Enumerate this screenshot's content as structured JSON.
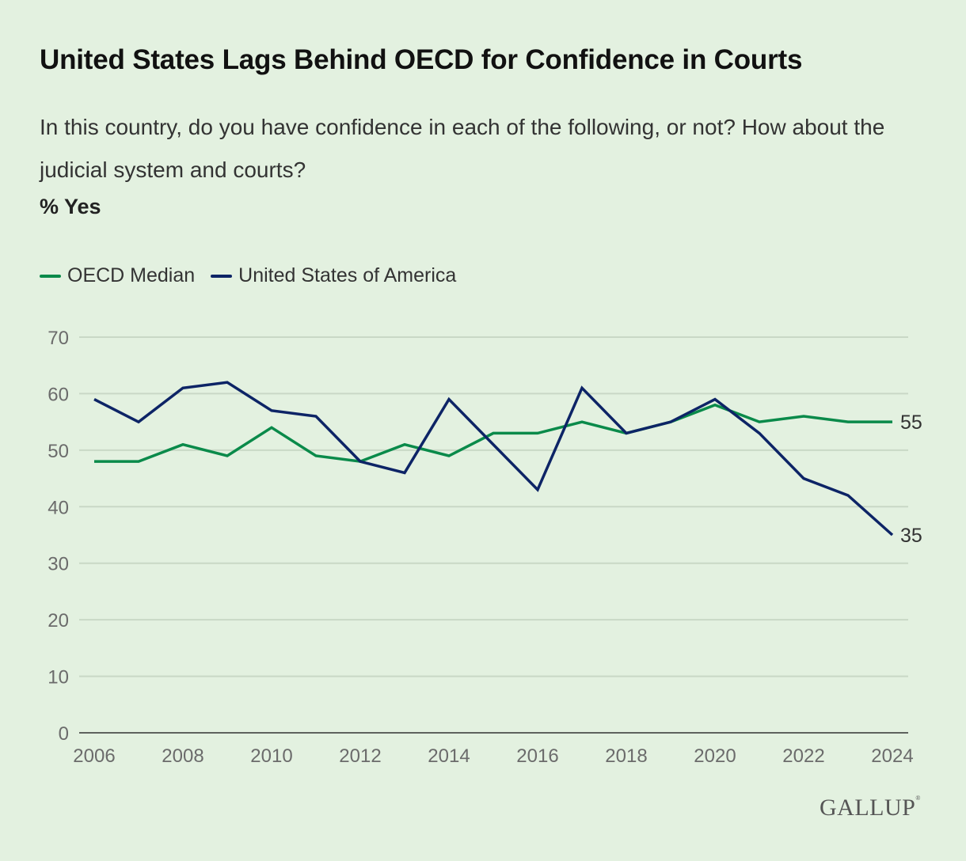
{
  "header": {
    "title": "United States Lags Behind OECD for Confidence in Courts",
    "subtitle": "In this country, do you have confidence in each of the following, or not? How about the judicial system and courts?",
    "unit_label": "% Yes"
  },
  "legend": [
    {
      "name": "OECD Median",
      "color": "#0a8a4a"
    },
    {
      "name": "United States of America",
      "color": "#0d2466"
    }
  ],
  "footer": {
    "logo": "GALLUP",
    "registered": "®"
  },
  "chart_data": {
    "type": "line",
    "title": "United States Lags Behind OECD for Confidence in Courts",
    "xlabel": "",
    "ylabel": "% Yes",
    "x": [
      2006,
      2007,
      2008,
      2009,
      2010,
      2011,
      2012,
      2013,
      2014,
      2015,
      2016,
      2017,
      2018,
      2019,
      2020,
      2021,
      2022,
      2023,
      2024
    ],
    "xticks": [
      2006,
      2008,
      2010,
      2012,
      2014,
      2016,
      2018,
      2020,
      2022,
      2024
    ],
    "yticks": [
      0,
      10,
      20,
      30,
      40,
      50,
      60,
      70
    ],
    "ylim": [
      0,
      70
    ],
    "grid": true,
    "legend_position": "top-left",
    "series": [
      {
        "name": "OECD Median",
        "color": "#0a8a4a",
        "end_label": "55",
        "values": [
          48,
          48,
          51,
          49,
          54,
          49,
          48,
          51,
          49,
          53,
          53,
          55,
          53,
          55,
          58,
          55,
          56,
          55,
          55
        ]
      },
      {
        "name": "United States of America",
        "color": "#0d2466",
        "end_label": "35",
        "values": [
          59,
          55,
          61,
          62,
          57,
          56,
          48,
          46,
          59,
          51,
          43,
          61,
          53,
          55,
          59,
          53,
          45,
          42,
          35
        ]
      }
    ]
  }
}
